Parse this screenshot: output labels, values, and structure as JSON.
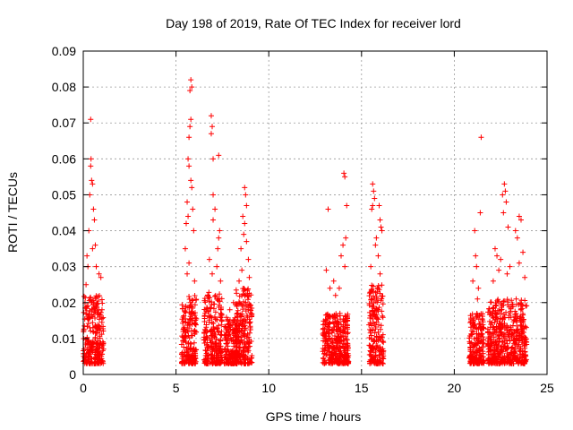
{
  "chart_data": {
    "type": "scatter",
    "title": "Day 198 of 2019, Rate Of TEC Index for receiver lord",
    "xlabel": "GPS time / hours",
    "ylabel": "ROTI / TECUs",
    "xlim": [
      0,
      25
    ],
    "ylim": [
      0,
      0.09
    ],
    "x_ticks": [
      "0",
      "5",
      "10",
      "15",
      "20",
      "25"
    ],
    "y_ticks": [
      "0",
      "0.01",
      "0.02",
      "0.03",
      "0.04",
      "0.05",
      "0.06",
      "0.07",
      "0.08",
      "0.09"
    ],
    "grid": true,
    "marker": "+",
    "color": "#ff0000",
    "clusters": [
      {
        "x_range": [
          0.0,
          1.1
        ],
        "dense_max": 0.022,
        "points": [
          [
            0.4,
            0.071
          ],
          [
            0.45,
            0.054
          ],
          [
            0.5,
            0.053
          ],
          [
            0.35,
            0.05
          ],
          [
            0.55,
            0.046
          ],
          [
            0.6,
            0.043
          ],
          [
            0.3,
            0.04
          ],
          [
            0.65,
            0.036
          ],
          [
            0.2,
            0.033
          ],
          [
            0.7,
            0.03
          ],
          [
            0.85,
            0.028
          ],
          [
            0.95,
            0.027
          ],
          [
            0.15,
            0.025
          ],
          [
            0.4,
            0.058
          ],
          [
            0.42,
            0.06
          ],
          [
            0.25,
            0.03
          ],
          [
            0.5,
            0.035
          ]
        ]
      },
      {
        "x_range": [
          5.3,
          6.1
        ],
        "dense_max": 0.022,
        "points": [
          [
            5.8,
            0.082
          ],
          [
            5.85,
            0.08
          ],
          [
            5.75,
            0.079
          ],
          [
            5.8,
            0.071
          ],
          [
            5.75,
            0.069
          ],
          [
            5.7,
            0.066
          ],
          [
            5.65,
            0.06
          ],
          [
            5.7,
            0.058
          ],
          [
            5.8,
            0.054
          ],
          [
            5.85,
            0.052
          ],
          [
            5.6,
            0.048
          ],
          [
            5.9,
            0.046
          ],
          [
            5.65,
            0.044
          ],
          [
            5.55,
            0.042
          ],
          [
            5.95,
            0.04
          ],
          [
            5.5,
            0.035
          ],
          [
            5.7,
            0.031
          ],
          [
            5.6,
            0.028
          ],
          [
            6.0,
            0.026
          ]
        ]
      },
      {
        "x_range": [
          6.5,
          7.5
        ],
        "dense_max": 0.023,
        "points": [
          [
            6.9,
            0.072
          ],
          [
            6.95,
            0.069
          ],
          [
            6.9,
            0.067
          ],
          [
            7.3,
            0.061
          ],
          [
            7.0,
            0.06
          ],
          [
            7.0,
            0.05
          ],
          [
            7.1,
            0.046
          ],
          [
            7.0,
            0.043
          ],
          [
            7.35,
            0.04
          ],
          [
            7.3,
            0.038
          ],
          [
            7.25,
            0.035
          ],
          [
            6.8,
            0.032
          ],
          [
            7.2,
            0.03
          ],
          [
            6.95,
            0.028
          ],
          [
            7.4,
            0.026
          ]
        ]
      },
      {
        "x_range": [
          7.6,
          8.3
        ],
        "dense_max": 0.016,
        "points": [
          [
            8.1,
            0.02
          ],
          [
            7.9,
            0.018
          ]
        ]
      },
      {
        "x_range": [
          8.2,
          9.1
        ],
        "dense_max": 0.024,
        "points": [
          [
            8.7,
            0.052
          ],
          [
            8.75,
            0.05
          ],
          [
            8.8,
            0.047
          ],
          [
            8.6,
            0.044
          ],
          [
            8.7,
            0.042
          ],
          [
            8.65,
            0.039
          ],
          [
            8.8,
            0.037
          ],
          [
            8.5,
            0.035
          ],
          [
            8.9,
            0.032
          ],
          [
            8.55,
            0.029
          ],
          [
            8.95,
            0.027
          ],
          [
            8.4,
            0.026
          ]
        ]
      },
      {
        "x_range": [
          12.9,
          14.3
        ],
        "dense_max": 0.017,
        "points": [
          [
            13.2,
            0.046
          ],
          [
            14.05,
            0.056
          ],
          [
            14.1,
            0.055
          ],
          [
            14.2,
            0.047
          ],
          [
            14.15,
            0.038
          ],
          [
            14.0,
            0.036
          ],
          [
            13.9,
            0.033
          ],
          [
            14.1,
            0.03
          ],
          [
            13.5,
            0.026
          ],
          [
            13.3,
            0.024
          ],
          [
            13.8,
            0.024
          ],
          [
            13.1,
            0.029
          ],
          [
            13.6,
            0.022
          ]
        ]
      },
      {
        "x_range": [
          15.4,
          16.2
        ],
        "dense_max": 0.025,
        "points": [
          [
            15.6,
            0.053
          ],
          [
            15.65,
            0.051
          ],
          [
            15.7,
            0.049
          ],
          [
            15.6,
            0.047
          ],
          [
            15.55,
            0.046
          ],
          [
            15.95,
            0.047
          ],
          [
            16.0,
            0.043
          ],
          [
            16.05,
            0.041
          ],
          [
            16.1,
            0.04
          ],
          [
            15.8,
            0.038
          ],
          [
            15.75,
            0.036
          ],
          [
            15.9,
            0.033
          ],
          [
            15.5,
            0.03
          ],
          [
            16.0,
            0.028
          ]
        ]
      },
      {
        "x_range": [
          20.8,
          21.6
        ],
        "dense_max": 0.017,
        "points": [
          [
            21.45,
            0.066
          ],
          [
            21.4,
            0.045
          ],
          [
            21.1,
            0.04
          ],
          [
            21.15,
            0.033
          ],
          [
            21.2,
            0.03
          ],
          [
            21.0,
            0.026
          ],
          [
            21.3,
            0.024
          ],
          [
            21.25,
            0.021
          ]
        ]
      },
      {
        "x_range": [
          21.8,
          23.9
        ],
        "dense_max": 0.021,
        "points": [
          [
            22.7,
            0.053
          ],
          [
            22.75,
            0.051
          ],
          [
            22.6,
            0.05
          ],
          [
            22.8,
            0.048
          ],
          [
            22.65,
            0.045
          ],
          [
            23.5,
            0.044
          ],
          [
            23.6,
            0.043
          ],
          [
            22.9,
            0.041
          ],
          [
            23.3,
            0.04
          ],
          [
            23.4,
            0.038
          ],
          [
            22.2,
            0.035
          ],
          [
            22.3,
            0.033
          ],
          [
            22.5,
            0.032
          ],
          [
            23.0,
            0.03
          ],
          [
            23.5,
            0.031
          ],
          [
            23.7,
            0.034
          ],
          [
            22.4,
            0.029
          ],
          [
            23.8,
            0.027
          ],
          [
            22.1,
            0.026
          ],
          [
            22.85,
            0.028
          ]
        ]
      }
    ]
  }
}
